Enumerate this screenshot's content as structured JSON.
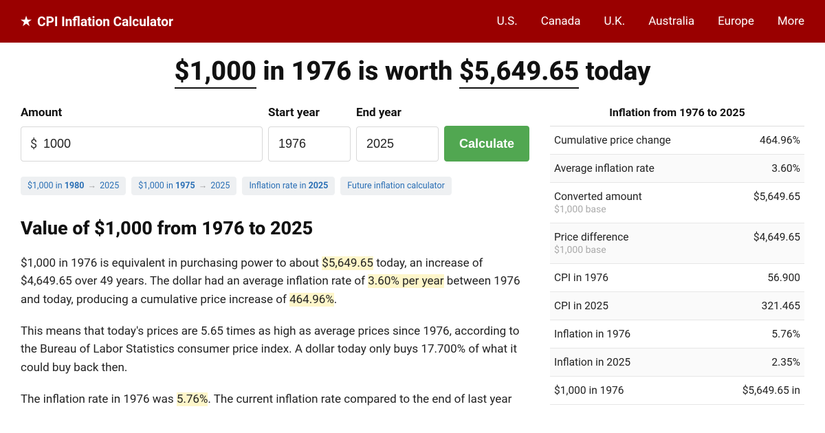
{
  "header": {
    "brand": "CPI Inflation Calculator",
    "nav": [
      "U.S.",
      "Canada",
      "U.K.",
      "Australia",
      "Europe",
      "More"
    ]
  },
  "title": {
    "amount": "$1,000",
    "mid1": " in 1976 is worth ",
    "result": "$5,649.65",
    "mid2": " today"
  },
  "form": {
    "amount_label": "Amount",
    "amount_value": "1000",
    "currency": "$",
    "start_label": "Start year",
    "start_value": "1976",
    "end_label": "End year",
    "end_value": "2025",
    "calc": "Calculate"
  },
  "chips": [
    {
      "pre": "$1,000 in ",
      "b": "1980",
      "post": "2025"
    },
    {
      "pre": "$1,000 in ",
      "b": "1975",
      "post": "2025"
    },
    {
      "pre": "Inflation rate in ",
      "b": "2025",
      "post": ""
    },
    {
      "pre": "Future inflation calculator",
      "b": "",
      "post": ""
    }
  ],
  "section": {
    "heading": "Value of $1,000 from 1976 to 2025",
    "p1a": "$1,000 in 1976 is equivalent in purchasing power to about ",
    "p1h1": "$5,649.65",
    "p1b": " today, an increase of $4,649.65 over 49 years. The dollar had an average inflation rate of ",
    "p1h2": "3.60% per year",
    "p1c": " between 1976 and today, producing a cumulative price increase of ",
    "p1h3": "464.96%",
    "p1d": ".",
    "p2": "This means that today's prices are 5.65 times as high as average prices since 1976, according to the Bureau of Labor Statistics consumer price index. A dollar today only buys 17.700% of what it could buy back then.",
    "p3a": "The inflation rate in 1976 was ",
    "p3h1": "5.76%",
    "p3b": ". The current inflation rate compared to the end of last year"
  },
  "stats": {
    "title": "Inflation from 1976 to 2025",
    "rows": [
      {
        "label": "Cumulative price change",
        "sub": "",
        "val": "464.96%"
      },
      {
        "label": "Average inflation rate",
        "sub": "",
        "val": "3.60%"
      },
      {
        "label": "Converted amount",
        "sub": "$1,000 base",
        "val": "$5,649.65"
      },
      {
        "label": "Price difference",
        "sub": "$1,000 base",
        "val": "$4,649.65"
      },
      {
        "label": "CPI in 1976",
        "sub": "",
        "val": "56.900"
      },
      {
        "label": "CPI in 2025",
        "sub": "",
        "val": "321.465"
      },
      {
        "label": "Inflation in 1976",
        "sub": "",
        "val": "5.76%"
      },
      {
        "label": "Inflation in 2025",
        "sub": "",
        "val": "2.35%"
      },
      {
        "label": "$1,000 in 1976",
        "sub": "",
        "val": "$5,649.65 in"
      }
    ]
  }
}
